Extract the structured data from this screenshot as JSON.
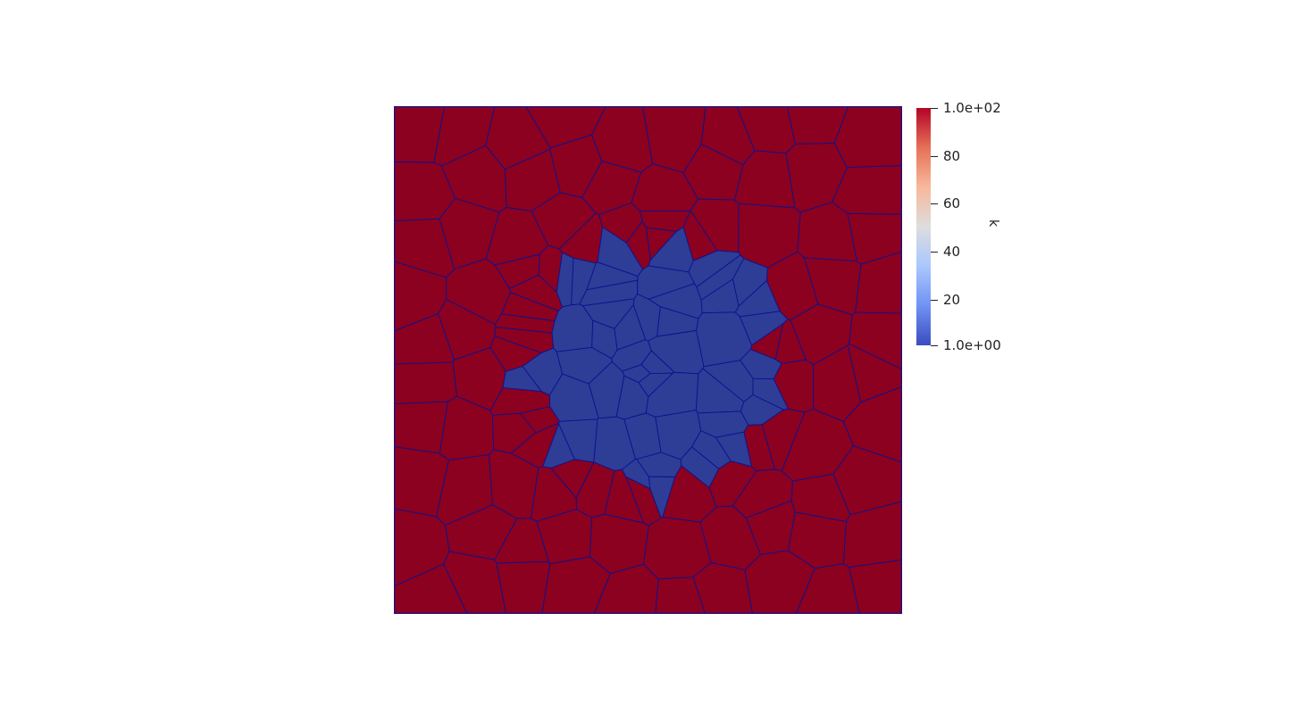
{
  "colors": {
    "high": "#8c011f",
    "low": "#2e3d96",
    "edges": "#0a1390",
    "colormap": [
      "#3b4cc0",
      "#7092f3",
      "#aac7fd",
      "#dddddd",
      "#f7b89c",
      "#e57057",
      "#b40426"
    ]
  },
  "colorbar": {
    "title": "k",
    "range": [
      1,
      100
    ],
    "ticks": [
      {
        "label": "1.0e+02",
        "value": 100
      },
      {
        "label": "80",
        "value": 80
      },
      {
        "label": "60",
        "value": 60
      },
      {
        "label": "40",
        "value": 40
      },
      {
        "label": "20",
        "value": 20
      },
      {
        "label": "1.0e+00",
        "value": 1
      }
    ]
  },
  "field": {
    "name": "k",
    "inclusion_value": 1,
    "matrix_value": 100
  }
}
